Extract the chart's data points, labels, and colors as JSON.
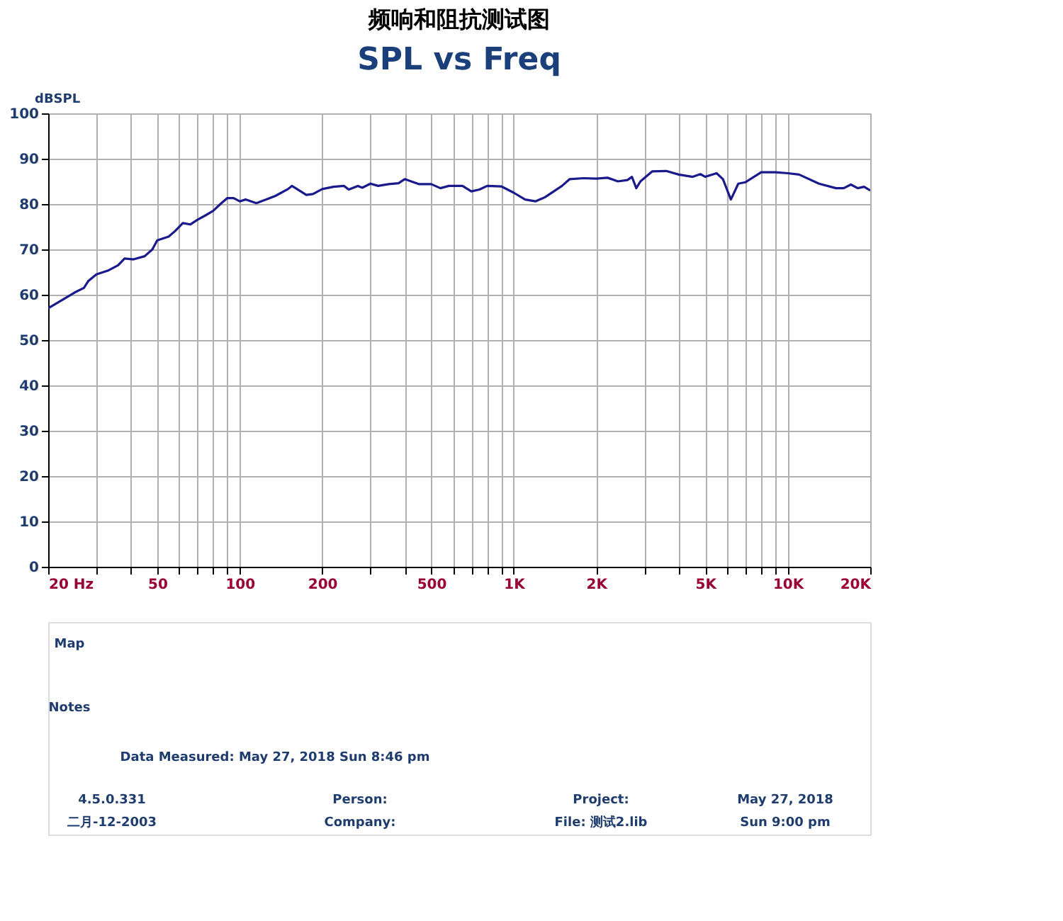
{
  "chart_data": {
    "type": "line",
    "title": "频响和阻抗测试图",
    "subtitle": "SPL vs Freq",
    "ylabel": "dBSPL",
    "x": [
      20,
      22,
      25,
      27,
      28,
      30,
      33,
      36,
      38,
      41,
      45,
      48,
      50,
      55,
      58,
      62,
      66,
      70,
      75,
      80,
      85,
      90,
      95,
      100,
      105,
      115,
      125,
      135,
      150,
      155,
      160,
      175,
      185,
      200,
      220,
      240,
      250,
      270,
      280,
      300,
      320,
      350,
      380,
      400,
      450,
      500,
      540,
      580,
      650,
      700,
      750,
      800,
      900,
      1000,
      1100,
      1200,
      1300,
      1500,
      1600,
      1800,
      2000,
      2200,
      2400,
      2600,
      2700,
      2800,
      2900,
      3200,
      3600,
      4000,
      4500,
      4800,
      5000,
      5500,
      5800,
      6200,
      6600,
      7000,
      8000,
      9000,
      10000,
      11000,
      13000,
      15000,
      16000,
      17000,
      18000,
      19000,
      20000
    ],
    "series": [
      {
        "color": "#1a1a8c",
        "values": [
          57,
          58.5,
          60.5,
          61.5,
          63,
          64.5,
          65.3,
          66.5,
          68,
          67.8,
          68.5,
          70,
          72,
          72.8,
          74,
          75.8,
          75.5,
          76.5,
          77.5,
          78.5,
          80,
          81.3,
          81.3,
          80.6,
          81,
          80.2,
          81,
          81.8,
          83.3,
          84,
          83.5,
          82,
          82.2,
          83.3,
          83.8,
          84,
          83.2,
          84,
          83.6,
          84.5,
          84,
          84.4,
          84.6,
          85.5,
          84.4,
          84.4,
          83.5,
          84,
          84,
          82.8,
          83.2,
          84,
          83.9,
          82.5,
          81,
          80.6,
          81.5,
          84,
          85.5,
          85.7,
          85.6,
          85.8,
          85,
          85.3,
          86,
          83.5,
          85,
          87.2,
          87.3,
          86.5,
          86,
          86.6,
          86,
          86.8,
          85.5,
          81,
          84.5,
          84.8,
          87,
          87,
          86.8,
          86.5,
          84.5,
          83.5,
          83.5,
          84.3,
          83.5,
          83.8,
          83
        ]
      }
    ],
    "log": "x",
    "xlim": [
      20,
      20000
    ],
    "ylim": [
      0,
      100
    ],
    "xticks": [
      {
        "value": 20,
        "label": "20 Hz"
      },
      {
        "value": 30,
        "label": null
      },
      {
        "value": 40,
        "label": null
      },
      50,
      {
        "value": 60,
        "label": null
      },
      {
        "value": 70,
        "label": null
      },
      {
        "value": 80,
        "label": null
      },
      {
        "value": 90,
        "label": null
      },
      100,
      200,
      {
        "value": 300,
        "label": null
      },
      {
        "value": 400,
        "label": null
      },
      500,
      {
        "value": 600,
        "label": null
      },
      {
        "value": 700,
        "label": null
      },
      {
        "value": 800,
        "label": null
      },
      {
        "value": 900,
        "label": null
      },
      {
        "value": 1000,
        "label": "1K"
      },
      {
        "value": 2000,
        "label": "2K"
      },
      {
        "value": 3000,
        "label": null
      },
      {
        "value": 4000,
        "label": null
      },
      {
        "value": 5000,
        "label": "5K"
      },
      {
        "value": 6000,
        "label": null
      },
      {
        "value": 7000,
        "label": null
      },
      {
        "value": 8000,
        "label": null
      },
      {
        "value": 9000,
        "label": null
      },
      {
        "value": 10000,
        "label": "10K"
      },
      {
        "value": 20000,
        "label": "20K"
      }
    ],
    "yticks": [
      0,
      10,
      20,
      30,
      40,
      50,
      60,
      70,
      80,
      90,
      100
    ],
    "grid": true,
    "annotations": [
      "Map",
      "Notes",
      "Data Measured: May 27, 2018  Sun  8:46 pm",
      "4.5.0.331",
      "二月-12-2003",
      "Person:",
      "Company:",
      "Project:",
      "File: 测试2.lib",
      "May 27, 2018",
      "Sun  9:00 pm"
    ]
  }
}
